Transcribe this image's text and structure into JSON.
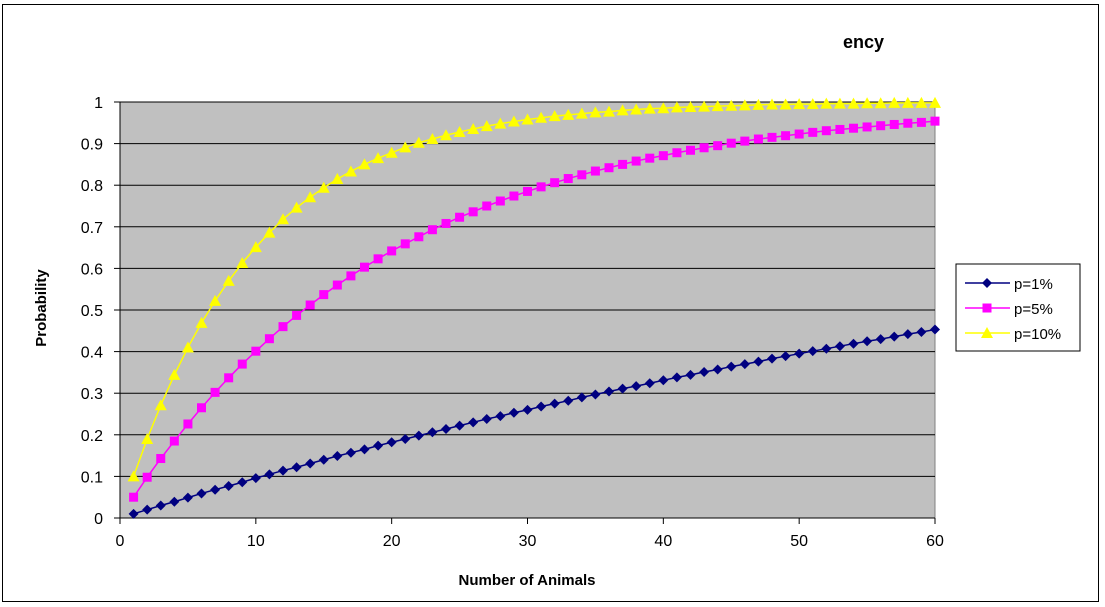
{
  "chart_data": {
    "type": "line",
    "title": "ency",
    "xlabel": "Number of Animals",
    "ylabel": "Probability",
    "xlim": [
      0,
      60
    ],
    "ylim": [
      0,
      1
    ],
    "xticks": [
      0,
      10,
      20,
      30,
      40,
      50,
      60
    ],
    "yticks": [
      0,
      0.1,
      0.2,
      0.3,
      0.4,
      0.5,
      0.6,
      0.7,
      0.8,
      0.9,
      1
    ],
    "ytick_labels": [
      "0",
      "0.1",
      "0.2",
      "0.3",
      "0.4",
      "0.5",
      "0.6",
      "0.7",
      "0.8",
      "0.9",
      "1"
    ],
    "grid": true,
    "plot_background": "#c0c0c0",
    "legend_position": "right",
    "x": [
      1,
      2,
      3,
      4,
      5,
      6,
      7,
      8,
      9,
      10,
      11,
      12,
      13,
      14,
      15,
      16,
      17,
      18,
      19,
      20,
      21,
      22,
      23,
      24,
      25,
      26,
      27,
      28,
      29,
      30,
      31,
      32,
      33,
      34,
      35,
      36,
      37,
      38,
      39,
      40,
      41,
      42,
      43,
      44,
      45,
      46,
      47,
      48,
      49,
      50,
      51,
      52,
      53,
      54,
      55,
      56,
      57,
      58,
      59,
      60
    ],
    "series": [
      {
        "name": "p=1%",
        "color": "#000080",
        "marker": "diamond",
        "values": [
          0.01,
          0.02,
          0.03,
          0.039,
          0.049,
          0.059,
          0.068,
          0.077,
          0.086,
          0.096,
          0.105,
          0.114,
          0.122,
          0.131,
          0.14,
          0.149,
          0.157,
          0.165,
          0.174,
          0.182,
          0.19,
          0.198,
          0.206,
          0.214,
          0.222,
          0.23,
          0.238,
          0.245,
          0.253,
          0.26,
          0.268,
          0.275,
          0.282,
          0.29,
          0.297,
          0.304,
          0.311,
          0.317,
          0.324,
          0.331,
          0.338,
          0.344,
          0.351,
          0.357,
          0.364,
          0.37,
          0.376,
          0.383,
          0.389,
          0.395,
          0.401,
          0.407,
          0.413,
          0.419,
          0.425,
          0.43,
          0.436,
          0.442,
          0.447,
          0.453
        ]
      },
      {
        "name": "p=5%",
        "color": "#ff00ff",
        "marker": "square",
        "values": [
          0.05,
          0.098,
          0.143,
          0.185,
          0.226,
          0.265,
          0.302,
          0.337,
          0.37,
          0.401,
          0.431,
          0.46,
          0.487,
          0.512,
          0.537,
          0.56,
          0.582,
          0.603,
          0.623,
          0.642,
          0.659,
          0.676,
          0.693,
          0.708,
          0.723,
          0.736,
          0.75,
          0.762,
          0.774,
          0.785,
          0.796,
          0.806,
          0.816,
          0.825,
          0.834,
          0.842,
          0.85,
          0.858,
          0.865,
          0.871,
          0.878,
          0.884,
          0.89,
          0.895,
          0.901,
          0.906,
          0.911,
          0.915,
          0.919,
          0.923,
          0.927,
          0.931,
          0.934,
          0.937,
          0.94,
          0.943,
          0.946,
          0.949,
          0.951,
          0.954
        ]
      },
      {
        "name": "p=10%",
        "color": "#ffff00",
        "marker": "triangle",
        "values": [
          0.1,
          0.19,
          0.271,
          0.344,
          0.41,
          0.469,
          0.522,
          0.57,
          0.613,
          0.651,
          0.686,
          0.718,
          0.746,
          0.771,
          0.794,
          0.815,
          0.833,
          0.85,
          0.865,
          0.878,
          0.891,
          0.902,
          0.911,
          0.92,
          0.928,
          0.935,
          0.942,
          0.948,
          0.953,
          0.958,
          0.962,
          0.966,
          0.969,
          0.972,
          0.975,
          0.977,
          0.98,
          0.982,
          0.984,
          0.985,
          0.987,
          0.988,
          0.989,
          0.99,
          0.991,
          0.992,
          0.993,
          0.994,
          0.994,
          0.995,
          0.995,
          0.996,
          0.996,
          0.996,
          0.997,
          0.997,
          0.998,
          0.998,
          0.998,
          0.998
        ]
      }
    ]
  }
}
